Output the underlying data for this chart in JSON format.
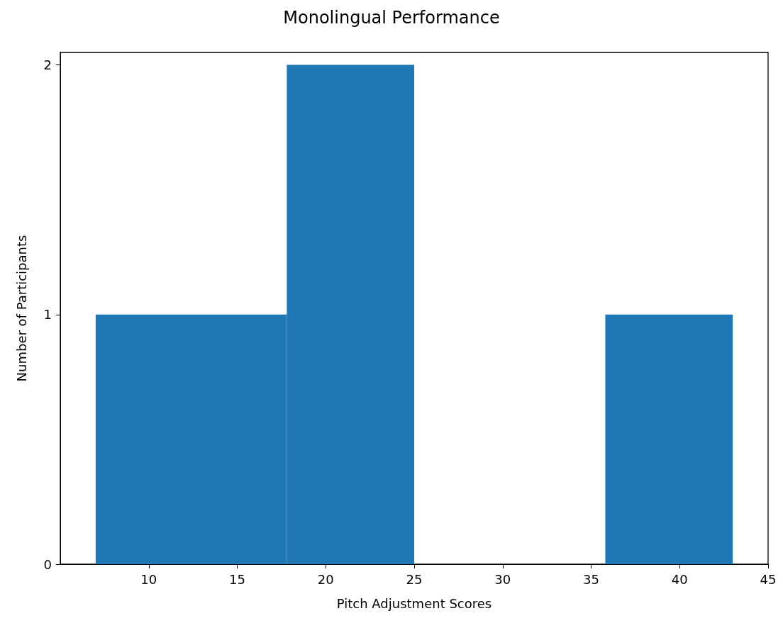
{
  "chart_data": {
    "type": "histogram",
    "title": "Monolingual Performance",
    "xlabel": "Pitch Adjustment Scores",
    "ylabel": "Number of Participants",
    "bins": [
      7,
      17.8,
      25,
      35.8,
      43
    ],
    "values": [
      1,
      2,
      0,
      1
    ],
    "color": "#1f77b4",
    "xlim": [
      5,
      45
    ],
    "xticks": [
      10,
      15,
      20,
      25,
      30,
      35,
      40,
      45
    ],
    "ylim": [
      0,
      2.05
    ],
    "yticks": [
      0,
      1,
      2
    ],
    "grid": false
  }
}
